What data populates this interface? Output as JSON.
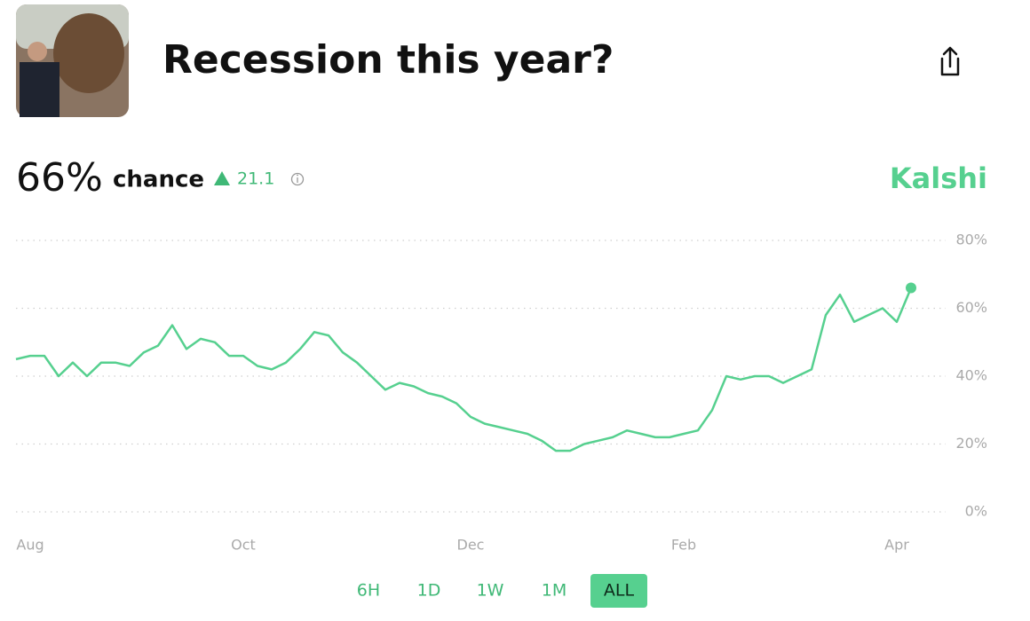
{
  "header": {
    "title": "Recession this year?"
  },
  "summary": {
    "probability": "66%",
    "label": "chance",
    "change": "21.1",
    "source": "Kalshi"
  },
  "chart_data": {
    "type": "line",
    "categories": [
      null,
      "Aug",
      null,
      null,
      null,
      null,
      null,
      null,
      null,
      null,
      null,
      null,
      null,
      null,
      null,
      null,
      "Oct",
      null,
      null,
      null,
      null,
      null,
      null,
      null,
      null,
      null,
      null,
      null,
      null,
      null,
      null,
      null,
      "Dec",
      null,
      null,
      null,
      null,
      null,
      null,
      null,
      null,
      null,
      null,
      null,
      null,
      null,
      null,
      "Feb",
      null,
      null,
      null,
      null,
      null,
      null,
      null,
      null,
      null,
      null,
      null,
      null,
      null,
      null,
      "Apr",
      null
    ],
    "series": [
      {
        "color": "#56d08f",
        "values": [
          45,
          46,
          46,
          40,
          44,
          40,
          44,
          44,
          43,
          47,
          49,
          55,
          48,
          51,
          50,
          46,
          46,
          43,
          42,
          44,
          48,
          53,
          52,
          47,
          44,
          40,
          36,
          38,
          37,
          35,
          34,
          32,
          28,
          26,
          25,
          24,
          23,
          21,
          18,
          18,
          20,
          21,
          22,
          24,
          23,
          22,
          22,
          23,
          24,
          30,
          40,
          39,
          40,
          40,
          38,
          40,
          42,
          58,
          64,
          56,
          58,
          60,
          56,
          66
        ]
      }
    ],
    "ylim": [
      0,
      80
    ],
    "yticks": [
      {
        "value": 0,
        "label": "0%"
      },
      {
        "value": 20,
        "label": "20%"
      },
      {
        "value": 40,
        "label": "40%"
      },
      {
        "value": 60,
        "label": "60%"
      },
      {
        "value": 80,
        "label": "80%"
      }
    ],
    "grid": true
  },
  "range_buttons": [
    "6H",
    "1D",
    "1W",
    "1M",
    "ALL"
  ],
  "selected_range": "ALL"
}
